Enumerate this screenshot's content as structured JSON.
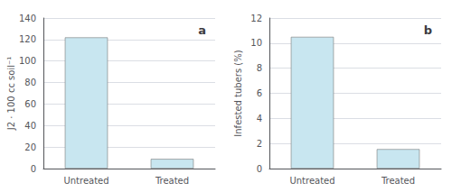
{
  "chart_data": [
    {
      "type": "bar",
      "categories": [
        "Untreated",
        "Treated"
      ],
      "values": [
        122,
        9
      ],
      "ylabel": "J2 · 100 cc soil⁻¹",
      "ylim": [
        0,
        140
      ],
      "yticks": [
        0,
        20,
        40,
        60,
        80,
        100,
        120,
        140
      ],
      "annotation": "a",
      "color": "#c8e6f0",
      "grid": true
    },
    {
      "type": "bar",
      "categories": [
        "Untreated",
        "Treated"
      ],
      "values": [
        10.5,
        1.55
      ],
      "ylabel": "Infested tubers (%)",
      "ylim": [
        0,
        12
      ],
      "yticks": [
        0,
        2,
        4,
        6,
        8,
        10,
        12
      ],
      "annotation": "b",
      "color": "#c8e6f0",
      "grid": true
    }
  ]
}
